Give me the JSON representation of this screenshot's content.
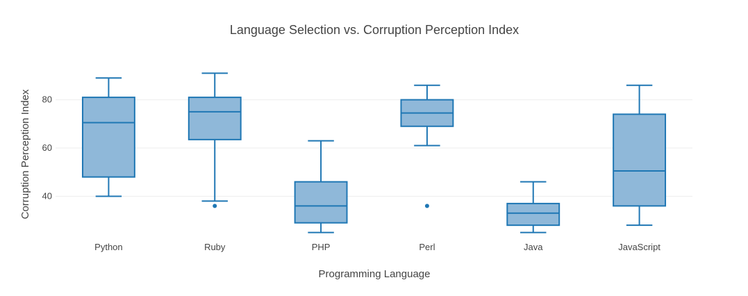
{
  "chart_data": {
    "type": "box",
    "title": "Language Selection vs. Corruption Perception Index",
    "xlabel": "Programming Language",
    "ylabel": "Corruption Perception Index",
    "ylim": [
      22,
      96
    ],
    "yticks": [
      "40",
      "60",
      "80"
    ],
    "grid": true,
    "colors": {
      "fill": "#8fb8d9",
      "stroke": "#1f77b4",
      "grid": "#eeeeee",
      "text": "#444444"
    },
    "categories": [
      "Python",
      "Ruby",
      "PHP",
      "Perl",
      "Java",
      "JavaScript"
    ],
    "boxes": [
      {
        "category": "Python",
        "min": 40,
        "q1": 48,
        "median": 70.5,
        "q3": 81,
        "max": 89,
        "outliers": []
      },
      {
        "category": "Ruby",
        "min": 38,
        "q1": 63.5,
        "median": 75,
        "q3": 81,
        "max": 91,
        "outliers": [
          36
        ]
      },
      {
        "category": "PHP",
        "min": 25,
        "q1": 29,
        "median": 36,
        "q3": 46,
        "max": 63,
        "outliers": []
      },
      {
        "category": "Perl",
        "min": 61,
        "q1": 69,
        "median": 74.5,
        "q3": 80,
        "max": 86,
        "outliers": [
          36
        ]
      },
      {
        "category": "Java",
        "min": 25,
        "q1": 28,
        "median": 33,
        "q3": 37,
        "max": 46,
        "outliers": []
      },
      {
        "category": "JavaScript",
        "min": 28,
        "q1": 36,
        "median": 50.5,
        "q3": 74,
        "max": 86,
        "outliers": []
      }
    ]
  }
}
